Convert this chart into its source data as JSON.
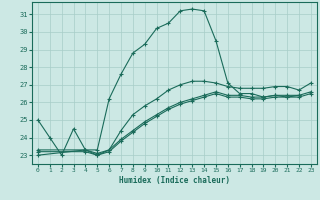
{
  "xlabel": "Humidex (Indice chaleur)",
  "xlim": [
    -0.5,
    23.5
  ],
  "ylim": [
    22.5,
    31.7
  ],
  "yticks": [
    23,
    24,
    25,
    26,
    27,
    28,
    29,
    30,
    31
  ],
  "xticks": [
    0,
    1,
    2,
    3,
    4,
    5,
    6,
    7,
    8,
    9,
    10,
    11,
    12,
    13,
    14,
    15,
    16,
    17,
    18,
    19,
    20,
    21,
    22,
    23
  ],
  "bg_color": "#cce8e4",
  "grid_color": "#a8cdc8",
  "line_color": "#1a6b5a",
  "series": [
    {
      "x": [
        0,
        1,
        2,
        3,
        4,
        5,
        6,
        7,
        8,
        9,
        10,
        11,
        12,
        13,
        14,
        15,
        16,
        17,
        18,
        19,
        20,
        21,
        22
      ],
      "y": [
        25.0,
        24.0,
        23.0,
        24.5,
        23.3,
        23.3,
        26.2,
        27.6,
        28.8,
        29.3,
        30.2,
        30.5,
        31.2,
        31.3,
        31.2,
        29.5,
        27.1,
        26.5,
        26.5,
        26.3,
        26.4,
        26.3,
        26.4
      ]
    },
    {
      "x": [
        0,
        4,
        5,
        6,
        7,
        8,
        9,
        10,
        11,
        12,
        13,
        14,
        15,
        16,
        17,
        18,
        19,
        20,
        21,
        22,
        23
      ],
      "y": [
        23.0,
        23.3,
        23.0,
        23.3,
        24.4,
        25.3,
        25.8,
        26.2,
        26.7,
        27.0,
        27.2,
        27.2,
        27.1,
        26.9,
        26.8,
        26.8,
        26.8,
        26.9,
        26.9,
        26.7,
        27.1
      ]
    },
    {
      "x": [
        0,
        4,
        5,
        6,
        7,
        8,
        9,
        10,
        11,
        12,
        13,
        14,
        15,
        16,
        17,
        18,
        19,
        20,
        21,
        22,
        23
      ],
      "y": [
        23.2,
        23.2,
        23.0,
        23.2,
        23.8,
        24.3,
        24.8,
        25.2,
        25.6,
        25.9,
        26.1,
        26.3,
        26.5,
        26.3,
        26.3,
        26.2,
        26.2,
        26.3,
        26.3,
        26.3,
        26.5
      ]
    },
    {
      "x": [
        0,
        4,
        5,
        6,
        7,
        8,
        9,
        10,
        11,
        12,
        13,
        14,
        15,
        16,
        17,
        18,
        19,
        20,
        21,
        22,
        23
      ],
      "y": [
        23.3,
        23.3,
        23.1,
        23.3,
        23.9,
        24.4,
        24.9,
        25.3,
        25.7,
        26.0,
        26.2,
        26.4,
        26.6,
        26.4,
        26.4,
        26.3,
        26.3,
        26.4,
        26.4,
        26.4,
        26.6
      ]
    }
  ]
}
